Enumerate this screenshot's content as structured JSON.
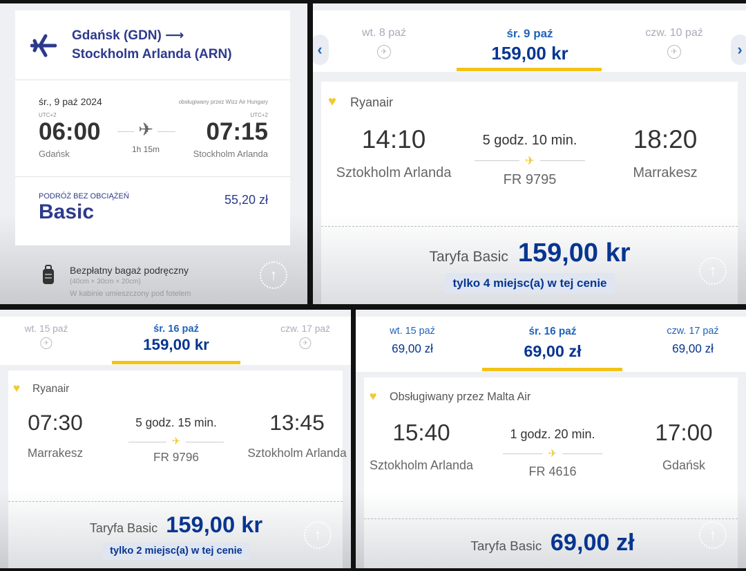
{
  "panels": [
    {
      "from": "Gdańsk (GDN) ⟶",
      "to": "Stockholm Arlanda (ARN)",
      "date": "śr., 9 paź 2024",
      "operator": "obsługiwany przez Wizz Air Hungary",
      "dep_tz": "UTC+2",
      "dep_time": "06:00",
      "dep_city": "Gdańsk",
      "duration": "1h 15m",
      "arr_tz": "UTC+2",
      "arr_time": "07:15",
      "arr_city": "Stockholm Arlanda",
      "fare_label": "PODRÓŻ BEZ OBCIĄŻEŃ",
      "fare_name": "Basic",
      "price": "55,20 zł",
      "baggage_title": "Bezpłatny bagaż podręczny",
      "baggage_size": "(40cm × 30cm × 20cm)",
      "baggage_note": "W kabinie umieszczony pod fotelem"
    },
    {
      "tabs": [
        {
          "label": "wt. 8 paź",
          "price": null
        },
        {
          "label": "śr. 9 paź",
          "price": "159,00 kr"
        },
        {
          "label": "czw. 10 paź",
          "price": null
        }
      ],
      "airline": "Ryanair",
      "dep_time": "14:10",
      "dep_city": "Sztokholm Arlanda",
      "duration": "5 godz. 10 min.",
      "flight": "FR 9795",
      "arr_time": "18:20",
      "arr_city": "Marrakesz",
      "fare_label": "Taryfa Basic",
      "fare_price": "159,00 kr",
      "seats_note": "tylko 4 miejsc(a) w tej cenie"
    },
    {
      "tabs": [
        {
          "label": "wt. 15 paź",
          "price": null
        },
        {
          "label": "śr. 16 paź",
          "price": "159,00 kr"
        },
        {
          "label": "czw. 17 paź",
          "price": null
        }
      ],
      "airline": "Ryanair",
      "dep_time": "07:30",
      "dep_city": "Marrakesz",
      "duration": "5 godz. 15 min.",
      "flight": "FR 9796",
      "arr_time": "13:45",
      "arr_city": "Sztokholm Arlanda",
      "fare_label": "Taryfa Basic",
      "fare_price": "159,00 kr",
      "seats_note": "tylko 2 miejsc(a) w tej cenie"
    },
    {
      "tabs": [
        {
          "label": "wt. 15 paź",
          "price": "69,00 zł"
        },
        {
          "label": "śr. 16 paź",
          "price": "69,00 zł"
        },
        {
          "label": "czw. 17 paź",
          "price": "69,00 zł"
        }
      ],
      "airline": "Obsługiwany przez Malta Air",
      "dep_time": "15:40",
      "dep_city": "Sztokholm Arlanda",
      "duration": "1 godz. 20 min.",
      "flight": "FR 4616",
      "arr_time": "17:00",
      "arr_city": "Gdańsk",
      "fare_label": "Taryfa Basic",
      "fare_price": "69,00 zł"
    }
  ]
}
